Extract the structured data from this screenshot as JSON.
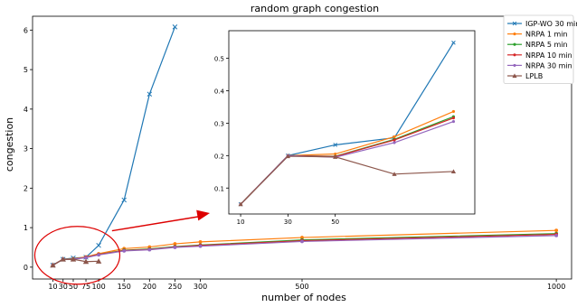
{
  "chart_data": {
    "type": "line",
    "title": "random graph congestion",
    "xlabel": "number of nodes",
    "ylabel": "congestion",
    "xlim": [
      -30,
      1030
    ],
    "ylim": [
      -0.3,
      6.35
    ],
    "xticks": [
      10,
      30,
      50,
      75,
      100,
      150,
      200,
      250,
      300,
      500,
      1000
    ],
    "yticks": [
      0,
      1,
      2,
      3,
      4,
      5,
      6
    ],
    "grid": false,
    "legend_position": "top-right",
    "x": [
      10,
      30,
      50,
      75,
      100,
      150,
      200,
      250,
      300,
      500,
      1000
    ],
    "series": [
      {
        "name": "IGP-WO 30 min",
        "color": "#1f77b4",
        "marker": "x",
        "values": [
          0.05,
          0.2,
          0.23,
          0.25,
          0.55,
          1.7,
          4.38,
          6.08,
          null,
          null,
          null
        ]
      },
      {
        "name": "NRPA 1 min",
        "color": "#ff7f0e",
        "marker": "dot",
        "values": [
          0.05,
          0.2,
          0.21,
          0.26,
          0.34,
          0.47,
          0.51,
          0.59,
          0.64,
          0.75,
          0.93
        ]
      },
      {
        "name": "NRPA 5 min",
        "color": "#2ca02c",
        "marker": "dot",
        "values": [
          0.05,
          0.2,
          0.2,
          0.25,
          0.32,
          0.43,
          0.46,
          0.52,
          0.56,
          0.69,
          0.85
        ]
      },
      {
        "name": "NRPA 10 min",
        "color": "#d62728",
        "marker": "dot",
        "values": [
          0.05,
          0.2,
          0.2,
          0.25,
          0.32,
          0.42,
          0.45,
          0.51,
          0.55,
          0.67,
          0.83
        ]
      },
      {
        "name": "NRPA 30 min",
        "color": "#9467bd",
        "marker": "dot",
        "values": [
          0.05,
          0.2,
          0.2,
          0.24,
          0.31,
          0.41,
          0.44,
          0.5,
          0.53,
          0.65,
          0.8
        ]
      },
      {
        "name": "LPLB",
        "color": "#8c564b",
        "marker": "triangle",
        "values": [
          0.05,
          0.2,
          0.2,
          0.14,
          0.15,
          null,
          null,
          null,
          null,
          null,
          null
        ]
      }
    ],
    "inset": {
      "xlim": [
        5,
        109
      ],
      "ylim": [
        0.02,
        0.585
      ],
      "xticks": [
        10,
        30,
        50
      ],
      "yticks": [
        0.1,
        0.2,
        0.3,
        0.4,
        0.5
      ],
      "ytick_labels": [
        "0.1",
        "0.2",
        "0.3",
        "0.4",
        "0.5"
      ],
      "x": [
        10,
        30,
        50,
        75,
        100
      ],
      "series": [
        {
          "name": "IGP-WO 30 min",
          "color": "#1f77b4",
          "marker": "x",
          "values": [
            0.05,
            0.2,
            0.233,
            0.255,
            0.548
          ]
        },
        {
          "name": "NRPA 1 min",
          "color": "#ff7f0e",
          "marker": "dot",
          "values": [
            0.05,
            0.2,
            0.205,
            0.258,
            0.336
          ]
        },
        {
          "name": "NRPA 5 min",
          "color": "#2ca02c",
          "marker": "dot",
          "values": [
            0.05,
            0.2,
            0.198,
            0.25,
            0.32
          ]
        },
        {
          "name": "NRPA 10 min",
          "color": "#d62728",
          "marker": "dot",
          "values": [
            0.05,
            0.2,
            0.197,
            0.248,
            0.316
          ]
        },
        {
          "name": "NRPA 30 min",
          "color": "#9467bd",
          "marker": "dot",
          "values": [
            0.05,
            0.2,
            0.195,
            0.24,
            0.305
          ]
        },
        {
          "name": "LPLB",
          "color": "#8c564b",
          "marker": "triangle",
          "values": [
            0.05,
            0.198,
            0.196,
            0.143,
            0.151
          ]
        }
      ]
    },
    "annotation": {
      "highlight_color": "#dd0000",
      "arrow_from": [
        80,
        0.2
      ],
      "arrow_to_inset": true
    }
  }
}
